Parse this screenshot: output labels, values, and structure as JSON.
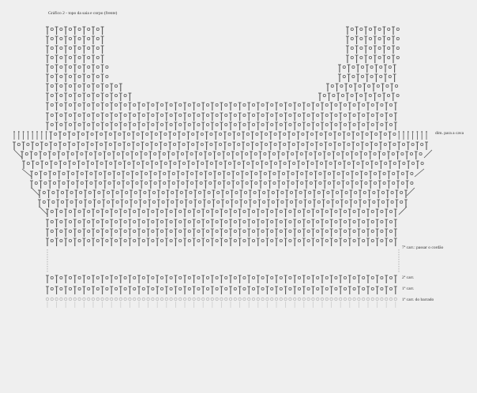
{
  "title": "Gráfico 2 - topo da saia e corpo (frente)",
  "labels": {
    "armhole": "dim. para a cava",
    "row7": "7ª carr.: passar o cordão",
    "row2": "2ª carr.",
    "row1": "1ª carr.",
    "border": "1ª carr. do barrado"
  },
  "colors": {
    "stitch": "#555555",
    "border_row": "#b8b8b8",
    "background": "#efefef"
  }
}
